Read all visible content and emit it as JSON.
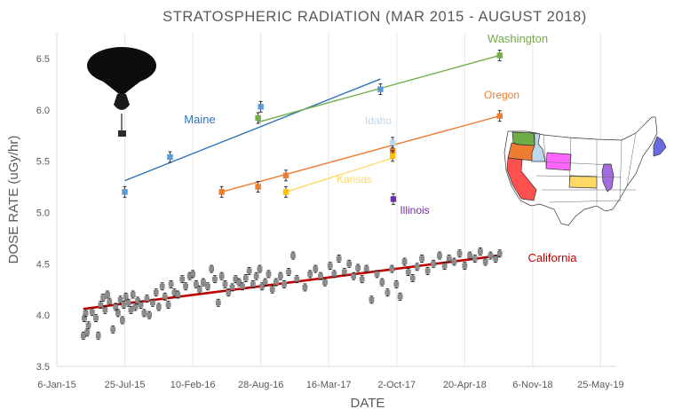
{
  "chart_data": {
    "type": "scatter",
    "title": "STRATOSPHERIC RADIATION (MAR 2015 - AUGUST 2018)",
    "xlabel": "DATE",
    "ylabel": "DOSE RATE (uGy/hr)",
    "ylim": [
      3.5,
      6.75
    ],
    "xlim": [
      "2015-01-06",
      "2019-07-10"
    ],
    "grid": "vertical",
    "legend": "none (series labeled directly on plot)",
    "y_ticks": [
      "3.5",
      "4.0",
      "4.5",
      "5.0",
      "5.5",
      "6.0",
      "6.5"
    ],
    "x_ticks": [
      {
        "date": "2015-01-06",
        "label": "6-Jan-15"
      },
      {
        "date": "2015-07-25",
        "label": "25-Jul-15"
      },
      {
        "date": "2016-02-10",
        "label": "10-Feb-16"
      },
      {
        "date": "2016-08-28",
        "label": "28-Aug-16"
      },
      {
        "date": "2017-03-16",
        "label": "16-Mar-17"
      },
      {
        "date": "2017-10-02",
        "label": "2-Oct-17"
      },
      {
        "date": "2018-04-20",
        "label": "20-Apr-18"
      },
      {
        "date": "2018-11-06",
        "label": "6-Nov-18"
      },
      {
        "date": "2019-05-25",
        "label": "25-May-19"
      }
    ],
    "series": [
      {
        "name": "California",
        "color": "#C00000",
        "marker_color": "#8c8c8c",
        "trendline": [
          [
            "2015-03-25",
            4.06
          ],
          [
            "2018-08-01",
            4.58
          ]
        ],
        "points": [
          [
            "2015-03-25",
            3.8
          ],
          [
            "2015-03-28",
            3.97
          ],
          [
            "2015-04-01",
            4.02
          ],
          [
            "2015-04-05",
            3.83
          ],
          [
            "2015-04-09",
            3.9
          ],
          [
            "2015-04-20",
            4.03
          ],
          [
            "2015-05-01",
            3.97
          ],
          [
            "2015-05-08",
            3.8
          ],
          [
            "2015-05-15",
            4.1
          ],
          [
            "2015-05-22",
            4.17
          ],
          [
            "2015-05-28",
            4.05
          ],
          [
            "2015-06-04",
            4.2
          ],
          [
            "2015-06-10",
            4.13
          ],
          [
            "2015-06-20",
            3.86
          ],
          [
            "2015-06-28",
            4.08
          ],
          [
            "2015-07-05",
            4.02
          ],
          [
            "2015-07-12",
            4.15
          ],
          [
            "2015-07-18",
            3.95
          ],
          [
            "2015-07-22",
            4.1
          ],
          [
            "2015-07-28",
            4.18
          ],
          [
            "2015-08-05",
            4.12
          ],
          [
            "2015-08-12",
            4.05
          ],
          [
            "2015-08-18",
            4.2
          ],
          [
            "2015-08-25",
            4.08
          ],
          [
            "2015-09-01",
            4.14
          ],
          [
            "2015-09-10",
            4.1
          ],
          [
            "2015-09-20",
            4.02
          ],
          [
            "2015-09-28",
            4.16
          ],
          [
            "2015-10-05",
            4.0
          ],
          [
            "2015-10-15",
            4.12
          ],
          [
            "2015-10-25",
            4.22
          ],
          [
            "2015-11-02",
            4.08
          ],
          [
            "2015-11-12",
            4.28
          ],
          [
            "2015-11-20",
            4.18
          ],
          [
            "2015-11-30",
            4.1
          ],
          [
            "2015-12-08",
            4.3
          ],
          [
            "2015-12-18",
            4.22
          ],
          [
            "2015-12-28",
            4.2
          ],
          [
            "2016-01-10",
            4.35
          ],
          [
            "2016-01-20",
            4.28
          ],
          [
            "2016-02-01",
            4.38
          ],
          [
            "2016-02-10",
            4.4
          ],
          [
            "2016-02-20",
            4.3
          ],
          [
            "2016-03-01",
            4.25
          ],
          [
            "2016-03-12",
            4.32
          ],
          [
            "2016-03-25",
            4.28
          ],
          [
            "2016-04-05",
            4.45
          ],
          [
            "2016-04-15",
            4.35
          ],
          [
            "2016-04-25",
            4.12
          ],
          [
            "2016-05-05",
            4.38
          ],
          [
            "2016-05-15",
            4.3
          ],
          [
            "2016-05-25",
            4.22
          ],
          [
            "2016-06-05",
            4.27
          ],
          [
            "2016-06-15",
            4.35
          ],
          [
            "2016-06-25",
            4.32
          ],
          [
            "2016-07-05",
            4.28
          ],
          [
            "2016-07-15",
            4.36
          ],
          [
            "2016-07-25",
            4.43
          ],
          [
            "2016-08-05",
            4.3
          ],
          [
            "2016-08-15",
            4.38
          ],
          [
            "2016-08-25",
            4.45
          ],
          [
            "2016-09-01",
            4.28
          ],
          [
            "2016-09-10",
            4.32
          ],
          [
            "2016-09-20",
            4.4
          ],
          [
            "2016-10-01",
            4.25
          ],
          [
            "2016-10-12",
            4.32
          ],
          [
            "2016-10-25",
            4.38
          ],
          [
            "2016-11-05",
            4.3
          ],
          [
            "2016-11-18",
            4.42
          ],
          [
            "2016-12-01",
            4.58
          ],
          [
            "2016-12-12",
            4.35
          ],
          [
            "2017-01-05",
            4.27
          ],
          [
            "2017-01-20",
            4.4
          ],
          [
            "2017-02-05",
            4.45
          ],
          [
            "2017-02-20",
            4.38
          ],
          [
            "2017-03-05",
            4.32
          ],
          [
            "2017-03-20",
            4.48
          ],
          [
            "2017-04-01",
            4.4
          ],
          [
            "2017-04-15",
            4.55
          ],
          [
            "2017-05-01",
            4.42
          ],
          [
            "2017-05-15",
            4.5
          ],
          [
            "2017-05-28",
            4.38
          ],
          [
            "2017-06-10",
            4.46
          ],
          [
            "2017-06-22",
            4.35
          ],
          [
            "2017-07-05",
            4.45
          ],
          [
            "2017-07-20",
            4.15
          ],
          [
            "2017-08-05",
            4.4
          ],
          [
            "2017-08-20",
            4.32
          ],
          [
            "2017-09-05",
            4.22
          ],
          [
            "2017-09-18",
            4.45
          ],
          [
            "2017-10-01",
            4.3
          ],
          [
            "2017-10-12",
            4.18
          ],
          [
            "2017-10-25",
            4.52
          ],
          [
            "2017-11-05",
            4.42
          ],
          [
            "2017-11-18",
            4.36
          ],
          [
            "2017-12-01",
            4.47
          ],
          [
            "2017-12-15",
            4.55
          ],
          [
            "2018-01-01",
            4.43
          ],
          [
            "2018-01-18",
            4.5
          ],
          [
            "2018-02-05",
            4.58
          ],
          [
            "2018-02-20",
            4.48
          ],
          [
            "2018-03-05",
            4.55
          ],
          [
            "2018-03-20",
            4.52
          ],
          [
            "2018-04-05",
            4.6
          ],
          [
            "2018-04-20",
            4.48
          ],
          [
            "2018-05-05",
            4.58
          ],
          [
            "2018-05-20",
            4.55
          ],
          [
            "2018-06-05",
            4.62
          ],
          [
            "2018-06-20",
            4.52
          ],
          [
            "2018-07-05",
            4.58
          ],
          [
            "2018-07-20",
            4.55
          ],
          [
            "2018-08-01",
            4.6
          ]
        ]
      },
      {
        "name": "Maine",
        "color": "#2E75B6",
        "marker_color": "#5B9BD5",
        "trendline": [
          [
            "2015-07-25",
            5.31
          ],
          [
            "2017-08-15",
            6.3
          ]
        ],
        "points": [
          [
            "2015-07-25",
            5.2
          ],
          [
            "2015-12-05",
            5.54
          ],
          [
            "2016-08-28",
            6.03
          ],
          [
            "2017-08-15",
            6.2
          ]
        ]
      },
      {
        "name": "Washington",
        "color": "#70AD47",
        "marker_color": "#70AD47",
        "trendline": [
          [
            "2016-08-20",
            5.88
          ],
          [
            "2018-08-01",
            6.53
          ]
        ],
        "points": [
          [
            "2016-08-20",
            5.92
          ],
          [
            "2018-08-01",
            6.53
          ]
        ]
      },
      {
        "name": "Oregon",
        "color": "#ED7D31",
        "marker_color": "#ED7D31",
        "trendline": [
          [
            "2016-05-05",
            5.2
          ],
          [
            "2018-08-01",
            5.94
          ]
        ],
        "points": [
          [
            "2016-05-05",
            5.2
          ],
          [
            "2016-08-20",
            5.25
          ],
          [
            "2016-11-10",
            5.36
          ],
          [
            "2017-09-20",
            5.6
          ],
          [
            "2018-08-01",
            5.94
          ]
        ]
      },
      {
        "name": "Idaho",
        "color": "#BDD7EE",
        "marker_color": "#BDD7EE",
        "trendline": [],
        "points": [
          [
            "2017-09-20",
            5.68
          ]
        ]
      },
      {
        "name": "Kansas",
        "color": "#FFD966",
        "marker_color": "#FFC000",
        "trendline": [
          [
            "2016-11-10",
            5.2
          ],
          [
            "2017-09-20",
            5.53
          ]
        ],
        "points": [
          [
            "2016-11-10",
            5.2
          ],
          [
            "2017-09-20",
            5.55
          ]
        ]
      },
      {
        "name": "Illinois",
        "color": "#7030A0",
        "marker_color": "#7030A0",
        "trendline": [],
        "points": [
          [
            "2017-09-22",
            5.13
          ]
        ]
      }
    ]
  },
  "state_colors": {
    "Washington": "#70AD47",
    "Oregon": "#ED7D31",
    "Idaho": "#BDD7EE",
    "California": "#FF5050",
    "Wyoming": "#FF66FF",
    "Kansas": "#FFD966",
    "Illinois": "#A66BE0",
    "Maine": "#6B6BE0"
  }
}
